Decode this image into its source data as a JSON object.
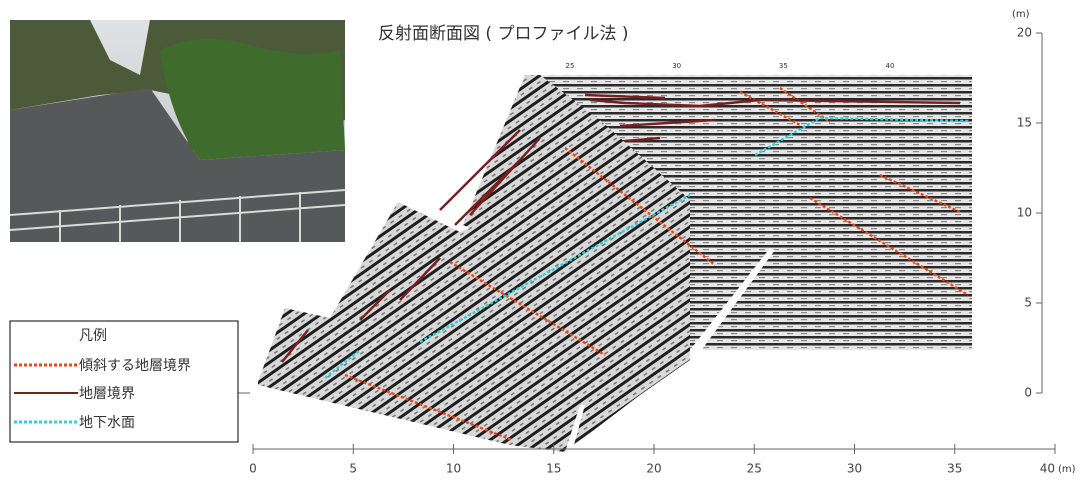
{
  "title": "反射面断面図 ( プロファイル法 )",
  "legend": {
    "title": "凡例",
    "items": [
      "傾斜する地層境界",
      "地層境界",
      "地下水面"
    ]
  },
  "x_axis": {
    "ticks": [
      0,
      5,
      10,
      15,
      20,
      25,
      30,
      35,
      40
    ],
    "unit": "(m)"
  },
  "y_axis": {
    "ticks": [
      0,
      5,
      10,
      15,
      20
    ],
    "unit": "(m)"
  },
  "profile_ticks": [
    25,
    30,
    35,
    40
  ]
}
